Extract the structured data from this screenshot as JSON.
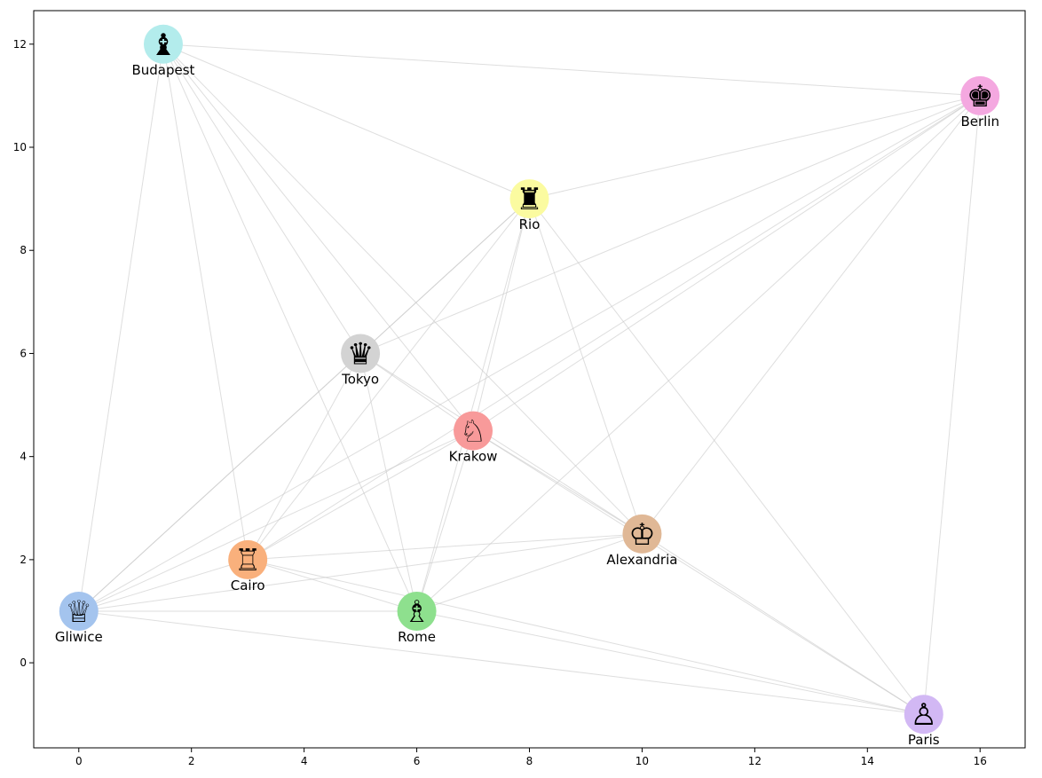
{
  "chart_data": {
    "type": "scatter",
    "title": "",
    "xlabel": "",
    "ylabel": "",
    "xlim": [
      -0.8,
      16.8
    ],
    "ylim": [
      -1.65,
      12.65
    ],
    "xticks": [
      0,
      2,
      4,
      6,
      8,
      10,
      12,
      14,
      16
    ],
    "yticks": [
      0,
      2,
      4,
      6,
      8,
      10,
      12
    ],
    "grid": false,
    "nodes": [
      {
        "name": "Budapest",
        "x": 1.5,
        "y": 12,
        "color": "#b3ecec",
        "piece": "bishop",
        "icon": "bishop-icon",
        "glyph": "♝"
      },
      {
        "name": "Berlin",
        "x": 16,
        "y": 11,
        "color": "#f4a8e0",
        "piece": "king",
        "icon": "king-icon",
        "glyph": "♚"
      },
      {
        "name": "Rio",
        "x": 8,
        "y": 9,
        "color": "#fbfba0",
        "piece": "rook",
        "icon": "rook-icon",
        "glyph": "♜"
      },
      {
        "name": "Tokyo",
        "x": 5,
        "y": 6,
        "color": "#d3d3d3",
        "piece": "queen",
        "icon": "queen-icon",
        "glyph": "♛"
      },
      {
        "name": "Krakow",
        "x": 7,
        "y": 4.5,
        "color": "#f89a9a",
        "piece": "knight",
        "icon": "knight-icon",
        "glyph": "♘"
      },
      {
        "name": "Alexandria",
        "x": 10,
        "y": 2.5,
        "color": "#e0b896",
        "piece": "king",
        "icon": "king-icon",
        "glyph": "♔"
      },
      {
        "name": "Cairo",
        "x": 3,
        "y": 2,
        "color": "#f9b07c",
        "piece": "rook",
        "icon": "rook-icon",
        "glyph": "♖"
      },
      {
        "name": "Gliwice",
        "x": 0,
        "y": 1,
        "color": "#a4c4ee",
        "piece": "queen",
        "icon": "queen-icon",
        "glyph": "♕"
      },
      {
        "name": "Rome",
        "x": 6,
        "y": 1,
        "color": "#8ee08e",
        "piece": "bishop",
        "icon": "bishop-icon",
        "glyph": "♗"
      },
      {
        "name": "Paris",
        "x": 15,
        "y": -1,
        "color": "#d2b8f4",
        "piece": "pawn",
        "icon": "pawn-icon",
        "glyph": "♙"
      }
    ],
    "edges": [
      [
        "Budapest",
        "Berlin"
      ],
      [
        "Budapest",
        "Rio"
      ],
      [
        "Budapest",
        "Gliwice"
      ],
      [
        "Budapest",
        "Cairo"
      ],
      [
        "Budapest",
        "Rome"
      ],
      [
        "Budapest",
        "Krakow"
      ],
      [
        "Budapest",
        "Alexandria"
      ],
      [
        "Budapest",
        "Tokyo"
      ],
      [
        "Berlin",
        "Rio"
      ],
      [
        "Berlin",
        "Tokyo"
      ],
      [
        "Berlin",
        "Cairo"
      ],
      [
        "Berlin",
        "Gliwice"
      ],
      [
        "Berlin",
        "Rome"
      ],
      [
        "Berlin",
        "Alexandria"
      ],
      [
        "Berlin",
        "Paris"
      ],
      [
        "Berlin",
        "Krakow"
      ],
      [
        "Rio",
        "Tokyo"
      ],
      [
        "Rio",
        "Krakow"
      ],
      [
        "Rio",
        "Rome"
      ],
      [
        "Rio",
        "Alexandria"
      ],
      [
        "Rio",
        "Paris"
      ],
      [
        "Rio",
        "Cairo"
      ],
      [
        "Rio",
        "Gliwice"
      ],
      [
        "Tokyo",
        "Krakow"
      ],
      [
        "Tokyo",
        "Alexandria"
      ],
      [
        "Tokyo",
        "Gliwice"
      ],
      [
        "Tokyo",
        "Cairo"
      ],
      [
        "Tokyo",
        "Rome"
      ],
      [
        "Krakow",
        "Alexandria"
      ],
      [
        "Krakow",
        "Paris"
      ],
      [
        "Krakow",
        "Rome"
      ],
      [
        "Krakow",
        "Cairo"
      ],
      [
        "Krakow",
        "Gliwice"
      ],
      [
        "Alexandria",
        "Cairo"
      ],
      [
        "Alexandria",
        "Rome"
      ],
      [
        "Alexandria",
        "Paris"
      ],
      [
        "Alexandria",
        "Gliwice"
      ],
      [
        "Cairo",
        "Gliwice"
      ],
      [
        "Cairo",
        "Rome"
      ],
      [
        "Cairo",
        "Paris"
      ],
      [
        "Gliwice",
        "Rome"
      ],
      [
        "Gliwice",
        "Paris"
      ],
      [
        "Rome",
        "Paris"
      ]
    ]
  }
}
